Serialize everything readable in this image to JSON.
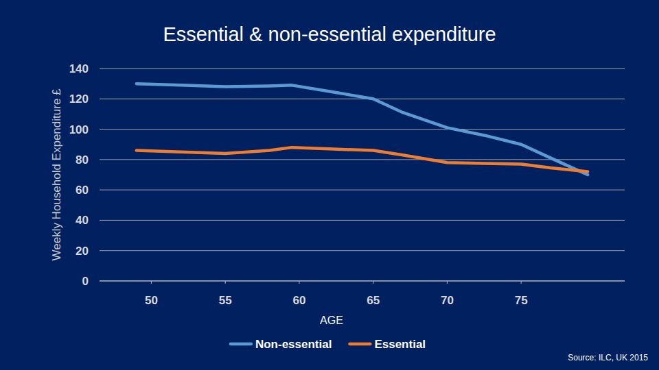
{
  "chart_data": {
    "type": "line",
    "title": "Essential & non-essential expenditure",
    "x_label": "AGE",
    "y_label": "Weekly Household Expenditure £",
    "source": "Source: ILC, UK 2015",
    "x": [
      49,
      52,
      55,
      58,
      59.5,
      62,
      65,
      67,
      70,
      72.5,
      75,
      77,
      79.5
    ],
    "series": [
      {
        "name": "Non-essential",
        "color": "#5b9bd5",
        "values": [
          130,
          129,
          128,
          128.5,
          129,
          125,
          120,
          111,
          101,
          96,
          90,
          81,
          70
        ]
      },
      {
        "name": "Essential",
        "color": "#ed7d31",
        "values": [
          86,
          85,
          84,
          86,
          88,
          87,
          86,
          83,
          78,
          77.5,
          77,
          74.5,
          72
        ]
      }
    ],
    "xlim": [
      46.5,
      82
    ],
    "xticks": [
      50,
      55,
      60,
      65,
      70,
      75
    ],
    "ylim": [
      0,
      140
    ],
    "yticks": [
      0,
      20,
      40,
      60,
      80,
      100,
      120,
      140
    ],
    "grid": true,
    "legend": "bottom"
  }
}
